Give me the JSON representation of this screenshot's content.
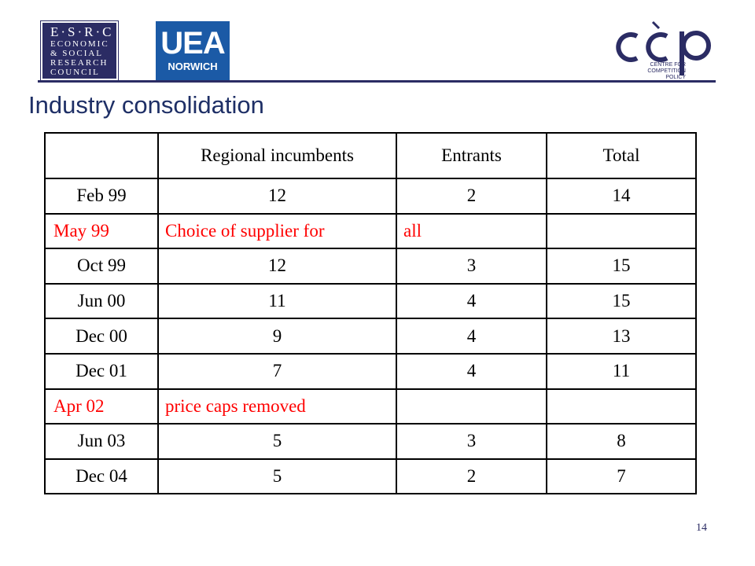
{
  "logos": {
    "esrc_line1": "E·S·R·C",
    "esrc_line2": "ECONOMIC",
    "esrc_line3": "& SOCIAL",
    "esrc_line4": "RESEARCH",
    "esrc_line5": "COUNCIL",
    "uea_mark": "UEA",
    "uea_sub": "NORWICH",
    "ccp_mark": "ccp",
    "ccp_sub1": "CENTRE FOR",
    "ccp_sub2": "COMPETITION POLICY"
  },
  "colors": {
    "navy": "#2b2c64",
    "title": "#1e2f66",
    "uea_blue": "#1b5aa6",
    "note_red": "#ff0000"
  },
  "title": "Industry consolidation",
  "table": {
    "headers": [
      "",
      "Regional incumbents",
      "Entrants",
      "Total"
    ],
    "rows": [
      [
        "Feb 99",
        "12",
        "2",
        "14"
      ],
      [
        "May 99",
        "Choice of supplier for",
        "all",
        ""
      ],
      [
        "Oct 99",
        "12",
        "3",
        "15"
      ],
      [
        "Jun 00",
        "11",
        "4",
        "15"
      ],
      [
        "Dec 00",
        "9",
        "4",
        "13"
      ],
      [
        "Dec 01",
        "7",
        "4",
        "11"
      ],
      [
        "Apr 02",
        "price caps removed",
        "",
        ""
      ],
      [
        "Jun 03",
        "5",
        "3",
        "8"
      ],
      [
        "Dec 04",
        "5",
        "2",
        "7"
      ]
    ]
  },
  "page_number": "14"
}
